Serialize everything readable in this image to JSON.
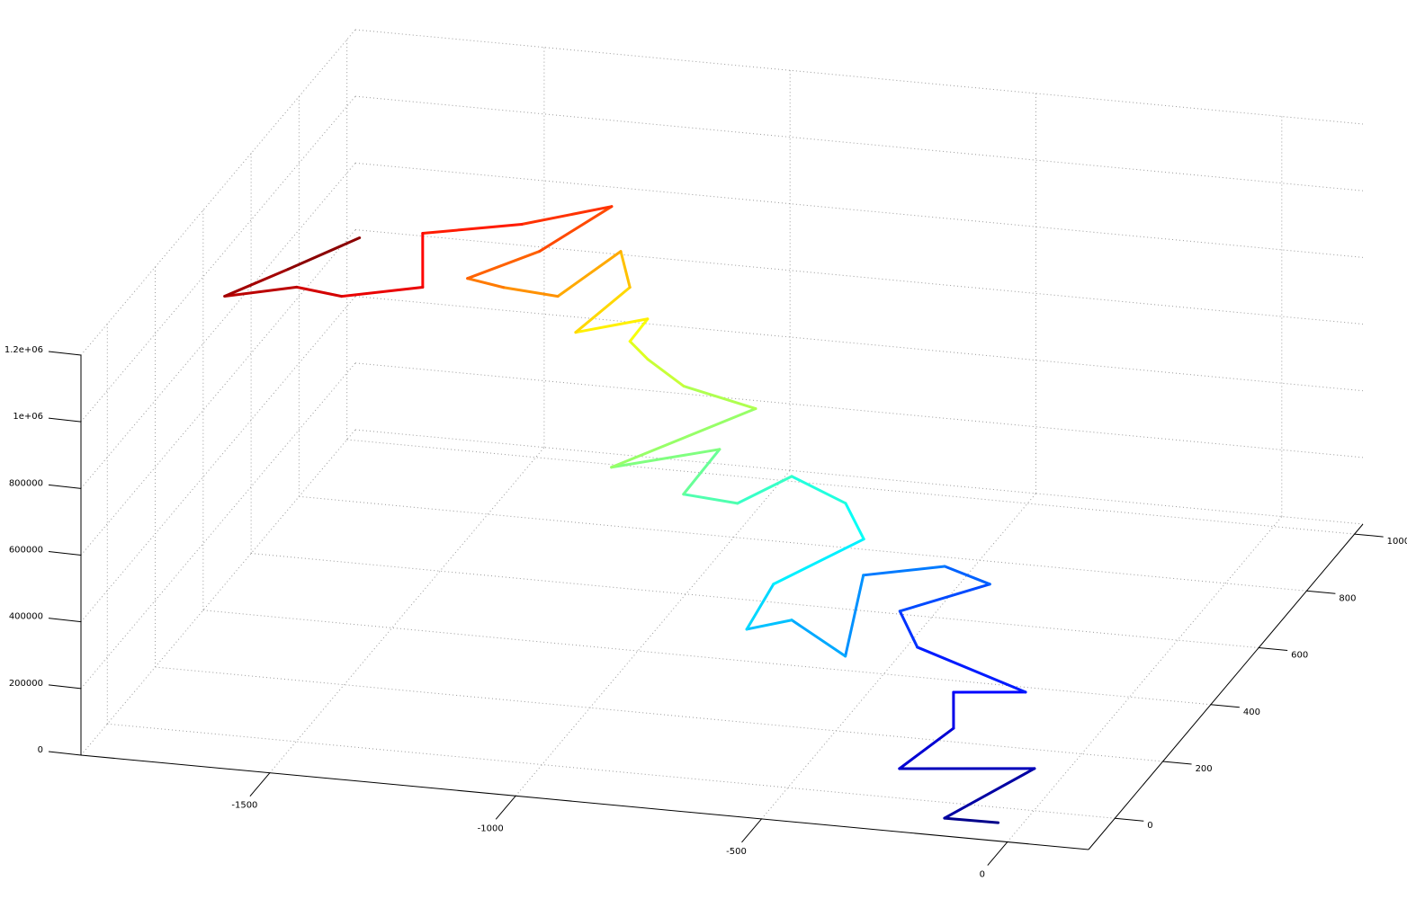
{
  "chart_data": {
    "type": "line3d",
    "colormap": "jet",
    "grid": true,
    "x": [
      -48,
      -142,
      -37,
      -277,
      -225,
      -268,
      -118,
      -379,
      -455,
      -314,
      -413,
      -538,
      -429,
      -573,
      -629,
      -636,
      -523,
      -600,
      -730,
      -775,
      -877,
      -866,
      -1027,
      -834,
      -991,
      -1087,
      -1135,
      -1123,
      -1223,
      -1178,
      -1238,
      -1271,
      -1373,
      -1441,
      -1334,
      -1255,
      -1382,
      -1540,
      -1440,
      -1564,
      -1649,
      -1756,
      -1665,
      -1566
    ],
    "y": [
      -50,
      -81,
      79,
      8,
      127,
      215,
      208,
      292,
      375,
      461,
      476,
      393,
      94,
      166,
      93,
      219,
      364,
      446,
      488,
      354,
      338,
      466,
      345,
      551,
      573,
      620,
      644,
      693,
      598,
      732,
      817,
      622,
      605,
      594,
      675,
      814,
      699,
      610,
      405,
      321,
      308,
      227,
      305,
      400
    ],
    "z": [
      0,
      27000,
      54000,
      81000,
      108000,
      135000,
      162000,
      189000,
      216000,
      243000,
      270000,
      297000,
      324000,
      351000,
      378000,
      405000,
      432000,
      459000,
      486000,
      513000,
      540000,
      567000,
      594000,
      621000,
      648000,
      675000,
      702000,
      729000,
      756000,
      783000,
      810000,
      837000,
      864000,
      891000,
      918000,
      945000,
      972000,
      999000,
      1026000,
      1053000,
      1080000,
      1107000,
      1134000,
      1161000
    ],
    "xlim": [
      -1884,
      165
    ],
    "xticks": [
      -1500,
      -1000,
      -500,
      0
    ],
    "ylim": [
      -110,
      1035
    ],
    "yticks": [
      0,
      200,
      400,
      600,
      800,
      1000
    ],
    "zlim": [
      0,
      1200000
    ],
    "zticks": [
      0,
      200000,
      400000,
      600000,
      800000,
      {
        "value": 1000000,
        "label": "1e+06"
      },
      {
        "value": 1200000,
        "label": "1.2e+06"
      }
    ]
  }
}
